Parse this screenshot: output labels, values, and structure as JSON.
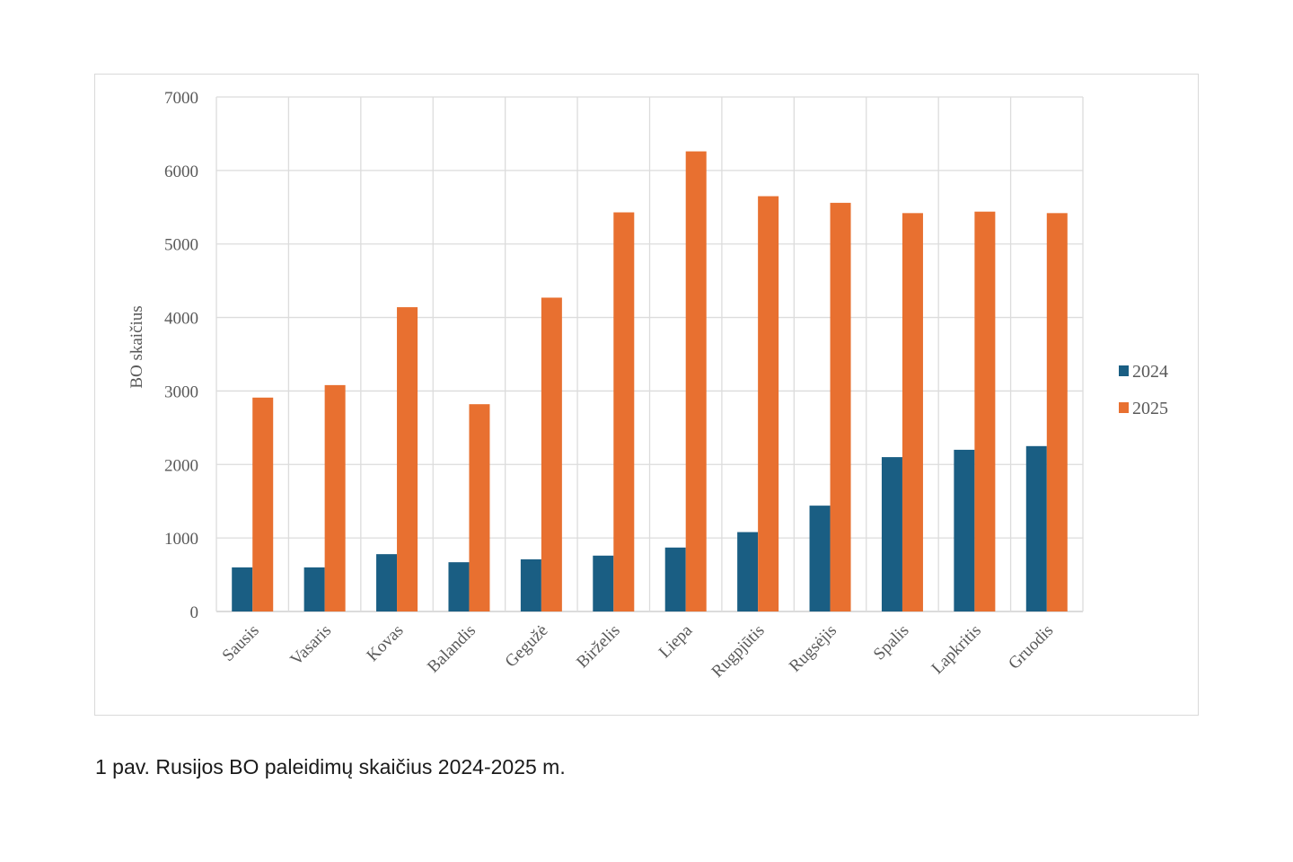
{
  "caption": "1 pav. Rusijos BO paleidimų skaičius 2024-2025 m.",
  "chart_data": {
    "type": "bar",
    "title": "",
    "xlabel": "",
    "ylabel": "BO skaičius",
    "ylim": [
      0,
      7000
    ],
    "yticks": [
      0,
      1000,
      2000,
      3000,
      4000,
      5000,
      6000,
      7000
    ],
    "grid": true,
    "legend_position": "right",
    "categories": [
      "Sausis",
      "Vasaris",
      "Kovas",
      "Balandis",
      "Gegužė",
      "Birželis",
      "Liepa",
      "Rugpjūtis",
      "Rugsėjis",
      "Spalis",
      "Lapkritis",
      "Gruodis"
    ],
    "series": [
      {
        "name": "2024",
        "color": "#1a5e83",
        "values": [
          600,
          600,
          780,
          670,
          710,
          760,
          870,
          1080,
          1440,
          2100,
          2200,
          2250
        ]
      },
      {
        "name": "2025",
        "color": "#e87030",
        "values": [
          2910,
          3080,
          4140,
          2820,
          4270,
          5430,
          6260,
          5650,
          5560,
          5420,
          5440,
          5420
        ]
      }
    ]
  }
}
